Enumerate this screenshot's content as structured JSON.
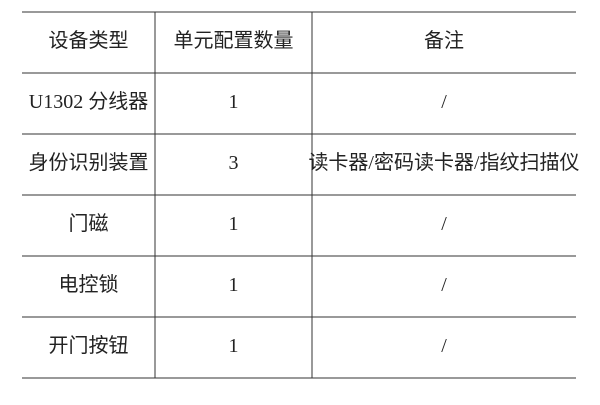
{
  "table": {
    "header": [
      "设备类型",
      "单元配置数量",
      "备注"
    ],
    "rows": [
      [
        "U1302 分线器",
        "1",
        "/"
      ],
      [
        "身份识别装置",
        "3",
        "读卡器/密码读卡器/指纹扫描仪"
      ],
      [
        "门磁",
        "1",
        "/"
      ],
      [
        "电控锁",
        "1",
        "/"
      ],
      [
        "开门按钮",
        "1",
        "/"
      ]
    ]
  }
}
